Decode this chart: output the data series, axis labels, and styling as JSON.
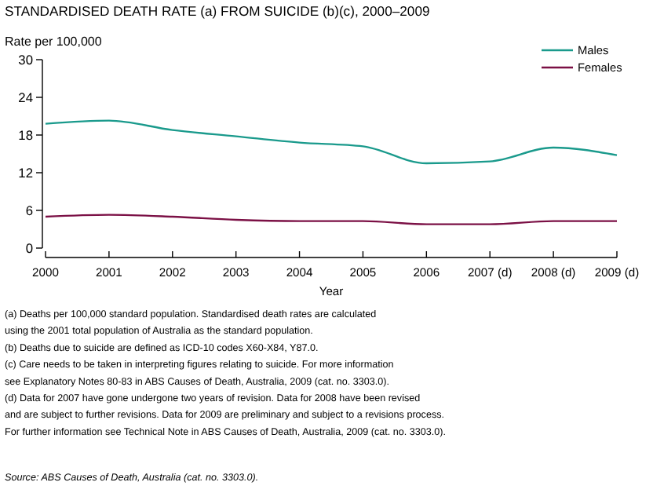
{
  "chart_data": {
    "type": "line",
    "title": "STANDARDISED DEATH RATE (a) FROM SUICIDE (b)(c), 2000–2009",
    "ylabel": "Rate per 100,000",
    "xlabel": "Year",
    "categories": [
      "2000",
      "2001",
      "2002",
      "2003",
      "2004",
      "2005",
      "2006",
      "2007 (d)",
      "2008 (d)",
      "2009 (d)"
    ],
    "series": [
      {
        "name": "Males",
        "color": "#1a9a8c",
        "values": [
          19.8,
          20.3,
          18.8,
          17.8,
          16.8,
          16.2,
          13.5,
          13.8,
          16.0,
          14.8
        ]
      },
      {
        "name": "Females",
        "color": "#7b1045",
        "values": [
          5.0,
          5.3,
          5.0,
          4.5,
          4.3,
          4.3,
          3.8,
          3.8,
          4.3,
          4.3
        ]
      }
    ],
    "ylim": [
      0,
      30
    ],
    "yticks": [
      0,
      6,
      12,
      18,
      24,
      30
    ],
    "grid": false,
    "legend": "top right",
    "marker": "none",
    "line_style": "solid",
    "annotations": [
      "(a) Deaths per 100,000 standard population. Standardised death rates are calculated",
      "using the 2001 total population of Australia as the standard population.",
      "(b) Deaths due to suicide are defined as ICD-10 codes X60-X84, Y87.0.",
      "(c) Care needs to be taken in interpreting figures relating to suicide. For more information",
      "see Explanatory Notes 80-83 in ABS Causes of Death, Australia, 2009 (cat. no. 3303.0).",
      "(d) Data for 2007 have gone undergone two years of revision. Data for 2008 have been revised",
      "and are subject to further revisions. Data for 2009 are preliminary and subject to a revisions process.",
      "For further information see Technical Note in ABS Causes of Death, Australia, 2009 (cat. no. 3303.0).",
      "Source: ABS Causes of Death, Australia (cat. no. 3303.0)."
    ]
  }
}
